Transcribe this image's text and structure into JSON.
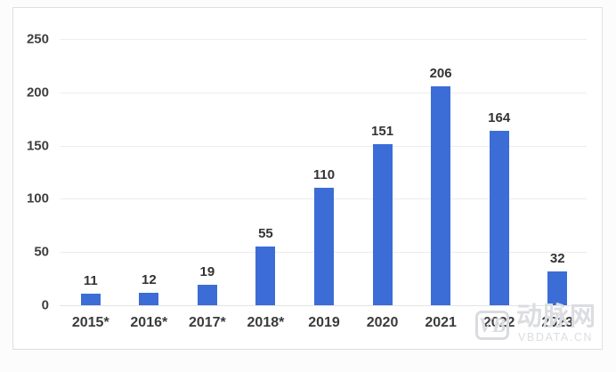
{
  "chart_data": {
    "type": "bar",
    "title": "",
    "xlabel": "",
    "ylabel": "",
    "categories": [
      "2015*",
      "2016*",
      "2017*",
      "2018*",
      "2019",
      "2020",
      "2021",
      "2022",
      "2023"
    ],
    "values": [
      11,
      12,
      19,
      55,
      110,
      151,
      206,
      164,
      32
    ],
    "ylim": [
      0,
      250
    ],
    "yticks": [
      0,
      50,
      100,
      150,
      200,
      250
    ],
    "grid": "on",
    "legend": "none",
    "data_labels": "above-bars",
    "bar_color": "#3c6cd6",
    "gridline_color": "#ededed",
    "label_color": "#333333"
  },
  "watermark": {
    "logo": "VB",
    "brand": "动脉网",
    "domain": "VBDATA.CN"
  }
}
